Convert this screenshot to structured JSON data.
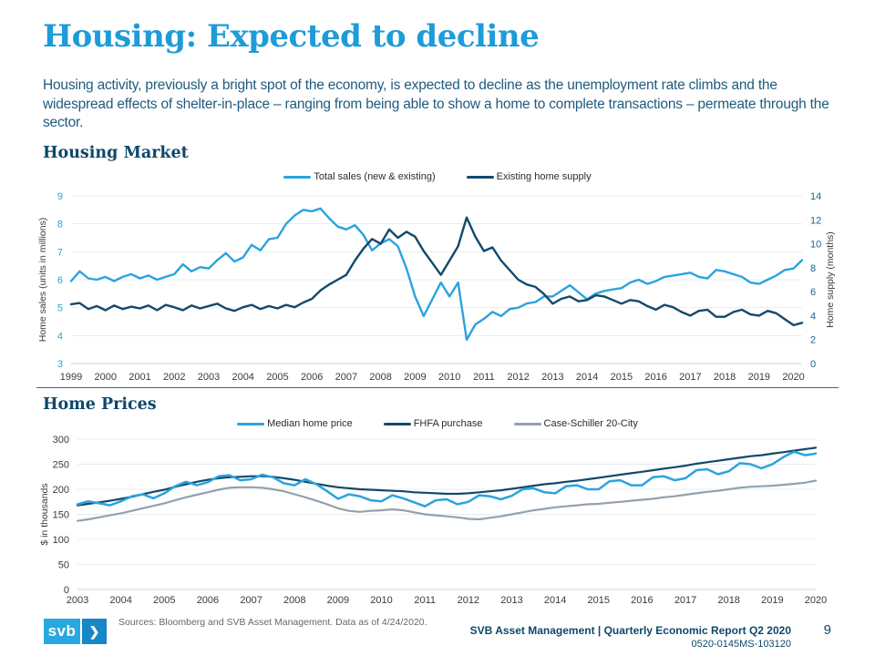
{
  "page": {
    "title": "Housing: Expected to decline",
    "intro": "Housing activity, previously a bright spot of the economy, is expected to decline as the unemployment rate climbs and the widespread effects of shelter-in-place – ranging from being able to show a home to complete transactions – permeate through the sector.",
    "accent_color": "#1e9cd8",
    "heading_color": "#0d486b"
  },
  "footer": {
    "logo_text": "svb",
    "chevron": "❯",
    "sources": "Sources: Bloomberg and SVB Asset Management. Data as of 4/24/2020.",
    "report": "SVB Asset Management | Quarterly Economic Report Q2 2020",
    "doc_id": "0520-0145MS-103120",
    "page_number": "9"
  },
  "chart_data": [
    {
      "type": "line",
      "title": "Housing Market",
      "x_start": 1999,
      "x_step": 0.25,
      "x_ticks": [
        1999,
        2000,
        2001,
        2002,
        2003,
        2004,
        2005,
        2006,
        2007,
        2008,
        2009,
        2010,
        2011,
        2012,
        2013,
        2014,
        2015,
        2016,
        2017,
        2018,
        2019,
        2020
      ],
      "ylabel_left": "Home sales (units in millions)",
      "ylabel_right": "Home supply (months)",
      "ylim_left": [
        3,
        9
      ],
      "yticks_left": [
        3,
        4,
        5,
        6,
        7,
        8,
        9
      ],
      "axis_left_color": "#2aa3de",
      "ylim_right": [
        0,
        14
      ],
      "yticks_right": [
        0,
        2,
        4,
        6,
        8,
        10,
        12,
        14
      ],
      "axis_right_color": "#19638f",
      "grid": true,
      "legend_position": "top-center",
      "series": [
        {
          "name": "Total sales (new & existing)",
          "axis": "left",
          "color": "#2aa3de",
          "width": 2.4,
          "draw_order": 1,
          "values": [
            5.95,
            6.3,
            6.05,
            6.0,
            6.1,
            5.95,
            6.1,
            6.2,
            6.05,
            6.15,
            6.0,
            6.1,
            6.2,
            6.55,
            6.3,
            6.45,
            6.4,
            6.7,
            6.95,
            6.65,
            6.8,
            7.25,
            7.05,
            7.45,
            7.5,
            8.0,
            8.3,
            8.5,
            8.45,
            8.55,
            8.2,
            7.9,
            7.8,
            7.95,
            7.6,
            7.05,
            7.3,
            7.45,
            7.2,
            6.4,
            5.4,
            4.7,
            5.3,
            5.9,
            5.4,
            5.9,
            3.85,
            4.4,
            4.6,
            4.85,
            4.7,
            4.95,
            5.0,
            5.15,
            5.2,
            5.4,
            5.4,
            5.6,
            5.8,
            5.55,
            5.3,
            5.5,
            5.6,
            5.65,
            5.7,
            5.9,
            6.0,
            5.85,
            5.95,
            6.1,
            6.15,
            6.2,
            6.25,
            6.1,
            6.05,
            6.35,
            6.3,
            6.2,
            6.1,
            5.9,
            5.85,
            6.0,
            6.15,
            6.35,
            6.4,
            6.7
          ]
        },
        {
          "name": "Existing home supply",
          "axis": "right",
          "color": "#12496c",
          "width": 2.4,
          "draw_order": 2,
          "values": [
            4.95,
            5.05,
            4.55,
            4.8,
            4.45,
            4.85,
            4.55,
            4.75,
            4.6,
            4.85,
            4.45,
            4.9,
            4.7,
            4.45,
            4.85,
            4.6,
            4.8,
            5.0,
            4.6,
            4.4,
            4.7,
            4.9,
            4.55,
            4.8,
            4.6,
            4.9,
            4.7,
            5.1,
            5.4,
            6.1,
            6.6,
            7.0,
            7.4,
            8.6,
            9.6,
            10.4,
            10.0,
            11.2,
            10.5,
            11.0,
            10.6,
            9.4,
            8.4,
            7.4,
            8.6,
            9.8,
            12.2,
            10.6,
            9.4,
            9.7,
            8.6,
            7.8,
            7.0,
            6.6,
            6.4,
            5.8,
            5.0,
            5.4,
            5.6,
            5.2,
            5.3,
            5.7,
            5.6,
            5.3,
            5.0,
            5.3,
            5.2,
            4.8,
            4.5,
            4.9,
            4.7,
            4.3,
            4.0,
            4.4,
            4.5,
            3.9,
            3.9,
            4.3,
            4.5,
            4.1,
            4.0,
            4.4,
            4.2,
            3.7,
            3.2,
            3.4
          ]
        }
      ]
    },
    {
      "type": "line",
      "title": "Home Prices",
      "x_start": 2003,
      "x_step": 0.25,
      "x_ticks": [
        2003,
        2004,
        2005,
        2006,
        2007,
        2008,
        2009,
        2010,
        2011,
        2012,
        2013,
        2014,
        2015,
        2016,
        2017,
        2018,
        2019,
        2020
      ],
      "ylabel_left": "$ in thousands",
      "ylim_left": [
        0,
        300
      ],
      "yticks_left": [
        0,
        50,
        100,
        150,
        200,
        250,
        300
      ],
      "axis_left_color": "#3a3a3a",
      "grid": true,
      "legend_position": "top-center",
      "series": [
        {
          "name": "Median home price",
          "axis": "left",
          "color": "#2aa3de",
          "width": 2.5,
          "draw_order": 3,
          "values": [
            170,
            176,
            172,
            168,
            176,
            186,
            190,
            182,
            192,
            206,
            215,
            208,
            214,
            226,
            228,
            218,
            220,
            229,
            224,
            212,
            208,
            220,
            210,
            196,
            181,
            190,
            186,
            178,
            176,
            188,
            182,
            174,
            166,
            178,
            180,
            170,
            175,
            188,
            186,
            180,
            187,
            200,
            202,
            194,
            192,
            206,
            208,
            200,
            200,
            216,
            218,
            208,
            208,
            224,
            226,
            218,
            222,
            238,
            240,
            230,
            236,
            252,
            250,
            242,
            250,
            264,
            275,
            268,
            271
          ]
        },
        {
          "name": "FHFA purchase",
          "axis": "left",
          "color": "#12496c",
          "width": 2.2,
          "draw_order": 2,
          "values": [
            168,
            171,
            174,
            177,
            181,
            185,
            190,
            195,
            199,
            205,
            210,
            215,
            219,
            222,
            224,
            225,
            226,
            226,
            225,
            222,
            219,
            215,
            211,
            207,
            204,
            202,
            200,
            199,
            198,
            197,
            196,
            194,
            193,
            192,
            191,
            191,
            192,
            194,
            196,
            198,
            201,
            204,
            207,
            210,
            212,
            215,
            217,
            220,
            223,
            226,
            229,
            232,
            235,
            238,
            241,
            244,
            247,
            251,
            254,
            257,
            260,
            263,
            266,
            268,
            271,
            274,
            277,
            280,
            283
          ]
        },
        {
          "name": "Case-Schiller 20-City",
          "axis": "left",
          "color": "#93a1ac",
          "width": 2.2,
          "draw_order": 1,
          "values": [
            137,
            140,
            144,
            148,
            152,
            157,
            162,
            167,
            172,
            178,
            184,
            189,
            194,
            199,
            203,
            204,
            204,
            203,
            200,
            196,
            190,
            184,
            177,
            170,
            162,
            157,
            155,
            157,
            158,
            160,
            158,
            154,
            150,
            148,
            146,
            144,
            141,
            140,
            143,
            146,
            150,
            154,
            158,
            161,
            164,
            166,
            168,
            170,
            171,
            173,
            175,
            177,
            179,
            181,
            184,
            186,
            189,
            192,
            195,
            197,
            200,
            203,
            205,
            206,
            207,
            209,
            211,
            213,
            217
          ]
        }
      ]
    }
  ]
}
